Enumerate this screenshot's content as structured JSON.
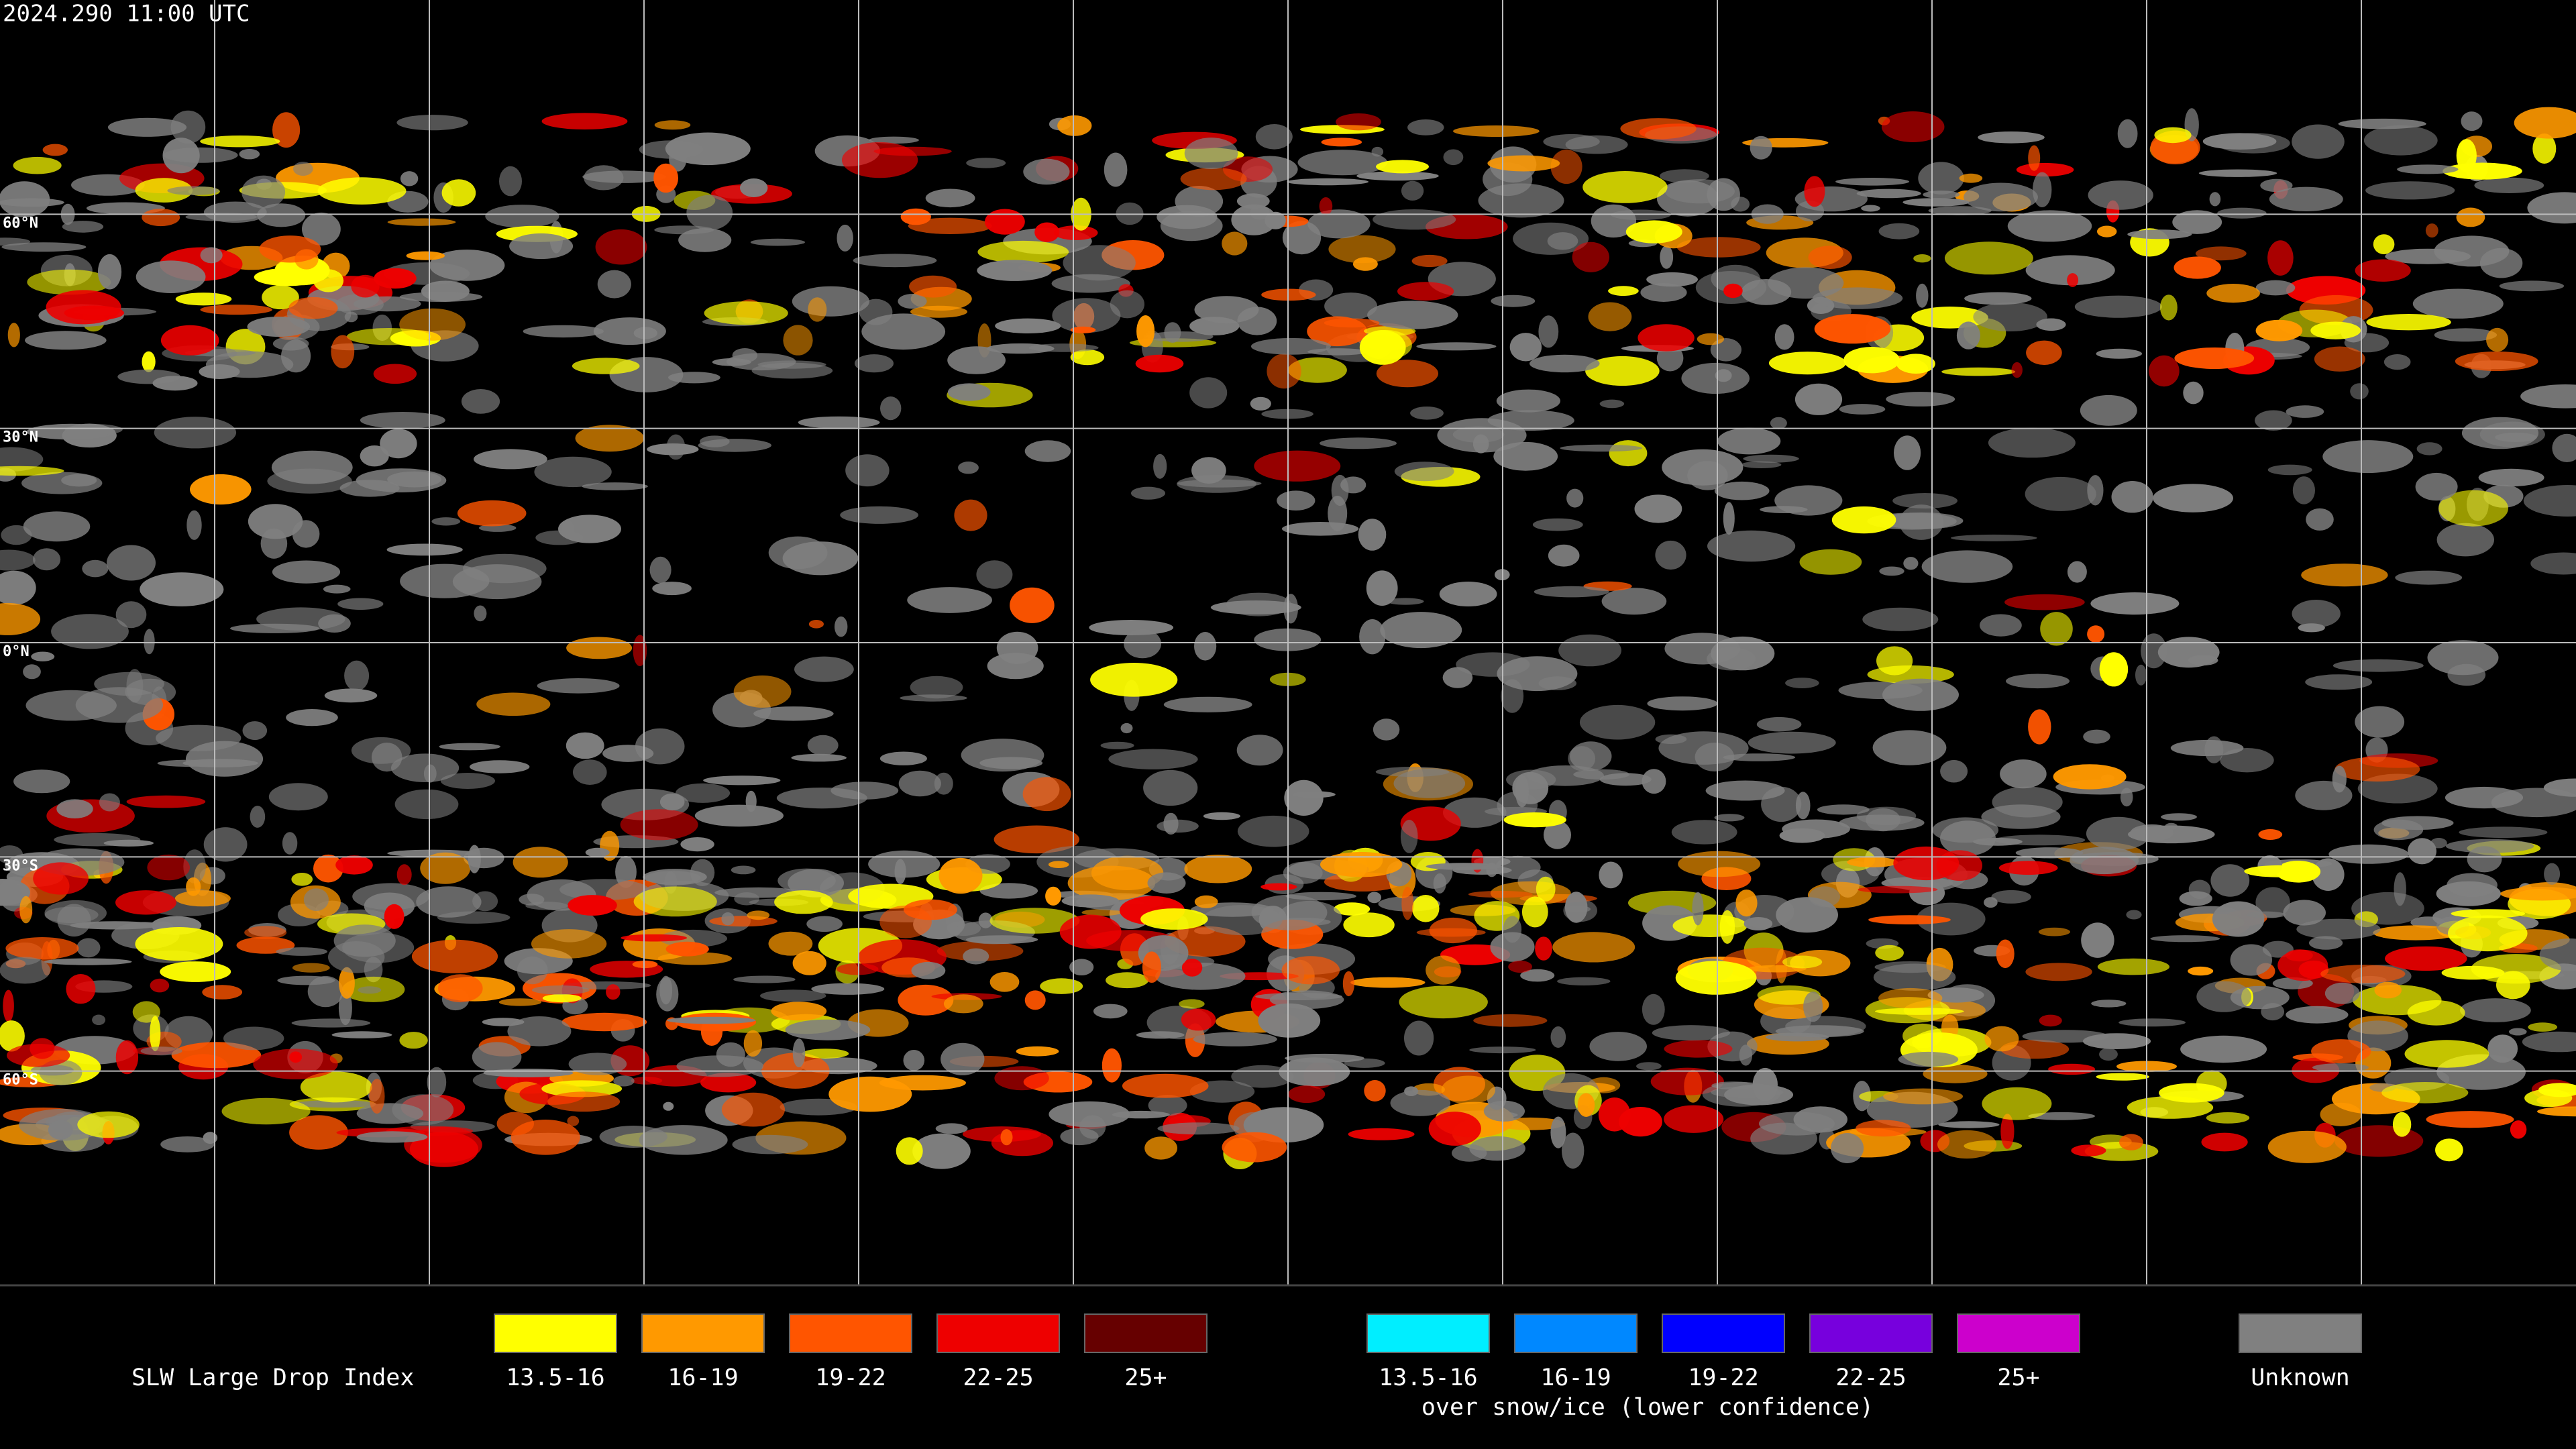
{
  "header": {
    "timestamp": "2024.290 11:00 UTC"
  },
  "map": {
    "latitude_labels": [
      "60°N",
      "30°N",
      "0°N",
      "30°S",
      "60°S"
    ]
  },
  "legend": {
    "title": "SLW Large Drop Index",
    "normal": [
      {
        "label": "13.5-16",
        "color": "#ffff00"
      },
      {
        "label": "16-19",
        "color": "#ff9900"
      },
      {
        "label": "19-22",
        "color": "#ff5500"
      },
      {
        "label": "22-25",
        "color": "#ee0000"
      },
      {
        "label": "25+",
        "color": "#660000"
      }
    ],
    "snow_ice": [
      {
        "label": "13.5-16",
        "color": "#00eeff"
      },
      {
        "label": "16-19",
        "color": "#0088ff"
      },
      {
        "label": "19-22",
        "color": "#0000ff"
      },
      {
        "label": "22-25",
        "color": "#7700dd"
      },
      {
        "label": "25+",
        "color": "#cc00cc"
      }
    ],
    "snow_ice_note": "over snow/ice (lower confidence)",
    "unknown": {
      "label": "Unknown",
      "color": "#808080"
    }
  }
}
